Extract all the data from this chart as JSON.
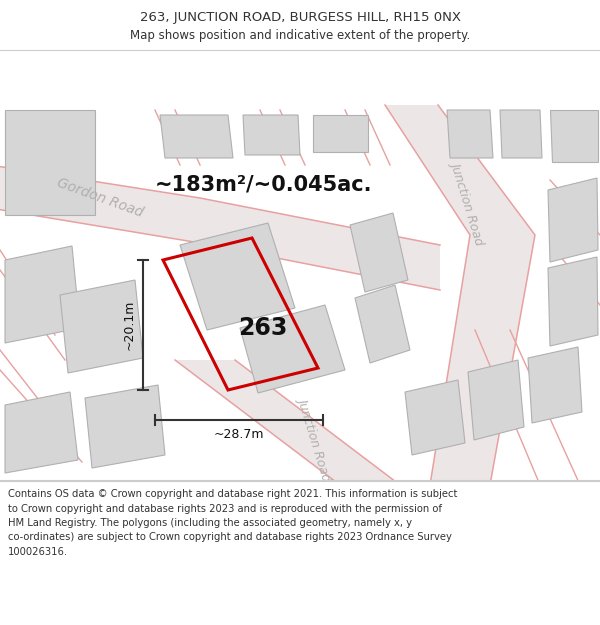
{
  "title_line1": "263, JUNCTION ROAD, BURGESS HILL, RH15 0NX",
  "title_line2": "Map shows position and indicative extent of the property.",
  "area_label": "~183m²/~0.045ac.",
  "property_number": "263",
  "dim_height": "~20.1m",
  "dim_width": "~28.7m",
  "map_background": "#f7f2f2",
  "road_line_color": "#e8a0a0",
  "road_fill_color": "#ede6e6",
  "building_fill": "#d6d6d6",
  "building_edge": "#b0b0b0",
  "plot_line_color": "#cc0000",
  "dim_line_color": "#333333",
  "road_label_color": "#b0b0b0",
  "title_color": "#333333",
  "footer_color": "#333333",
  "footer_lines": [
    "Contains OS data © Crown copyright and database right 2021. This information is subject",
    "to Crown copyright and database rights 2023 and is reproduced with the permission of",
    "HM Land Registry. The polygons (including the associated geometry, namely x, y",
    "co-ordinates) are subject to Crown copyright and database rights 2023 Ordnance Survey",
    "100026316."
  ]
}
